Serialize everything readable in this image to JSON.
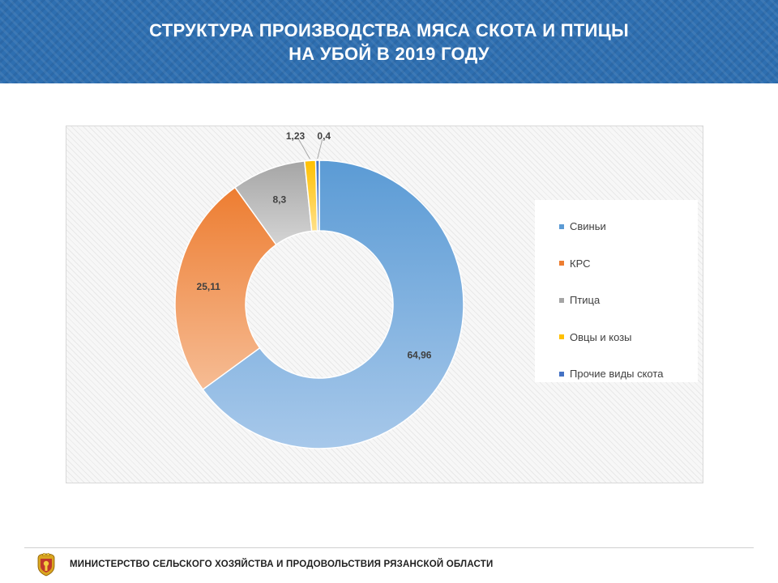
{
  "header": {
    "title_line1": "СТРУКТУРА ПРОИЗВОДСТВА МЯСА СКОТА И ПТИЦЫ",
    "title_line2": "НА УБОЙ В 2019 ГОДУ"
  },
  "chart_data": {
    "type": "pie",
    "variant": "doughnut",
    "title": "",
    "categories": [
      "Свиньи",
      "КРС",
      "Птица",
      "Овцы и козы",
      "Прочие виды скота"
    ],
    "values": [
      64.96,
      25.11,
      8.3,
      1.23,
      0.4
    ],
    "data_labels": [
      "64,96",
      "25,11",
      "8,3",
      "1,23",
      "0,4"
    ],
    "colors": [
      "#5b9bd5",
      "#ed7d31",
      "#a5a5a5",
      "#ffc000",
      "#4472c4"
    ],
    "legend_position": "right"
  },
  "footer": {
    "organization": "МИНИСТЕРСТВО СЕЛЬСКОГО ХОЗЯЙСТВА И ПРОДОВОЛЬСТВИЯ РЯЗАНСКОЙ ОБЛАСТИ",
    "emblem_icon": "coat-of-arms-icon"
  }
}
